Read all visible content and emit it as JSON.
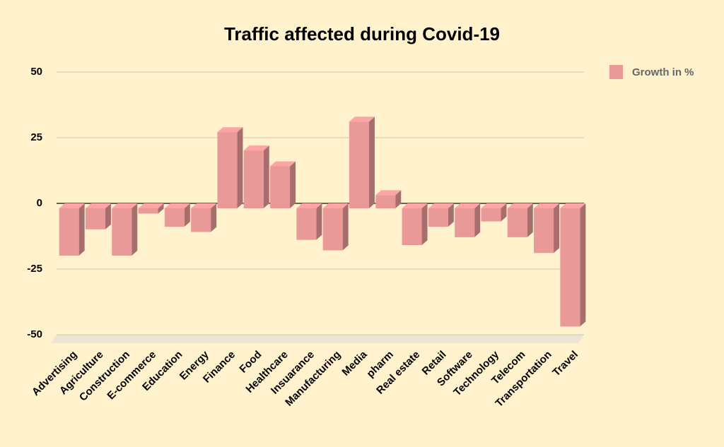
{
  "chart_data": {
    "type": "bar3d",
    "title": "Traffic affected during Covid-19",
    "categories": [
      "Advertising",
      "Agriculture",
      "Construction",
      "E-commerce",
      "Education",
      "Energy",
      "Finance",
      "Food",
      "Healthcare",
      "Insuarance",
      "Manufacturing",
      "Media",
      "pharm",
      "Real estate",
      "Retail",
      "Software",
      "Technology",
      "Telecom",
      "Transportation",
      "Travel"
    ],
    "series": [
      {
        "name": "Growth in %",
        "color": "#ea9999",
        "values": [
          -18,
          -8,
          -18,
          -2,
          -7,
          -9,
          29,
          22,
          16,
          -12,
          -16,
          33,
          5,
          -14,
          -7,
          -11,
          -5,
          -11,
          -17,
          -45
        ]
      }
    ],
    "ylim": [
      -50,
      50
    ],
    "yticks": [
      -50,
      -25,
      0,
      25,
      50
    ],
    "grid": true,
    "legend": "right"
  }
}
